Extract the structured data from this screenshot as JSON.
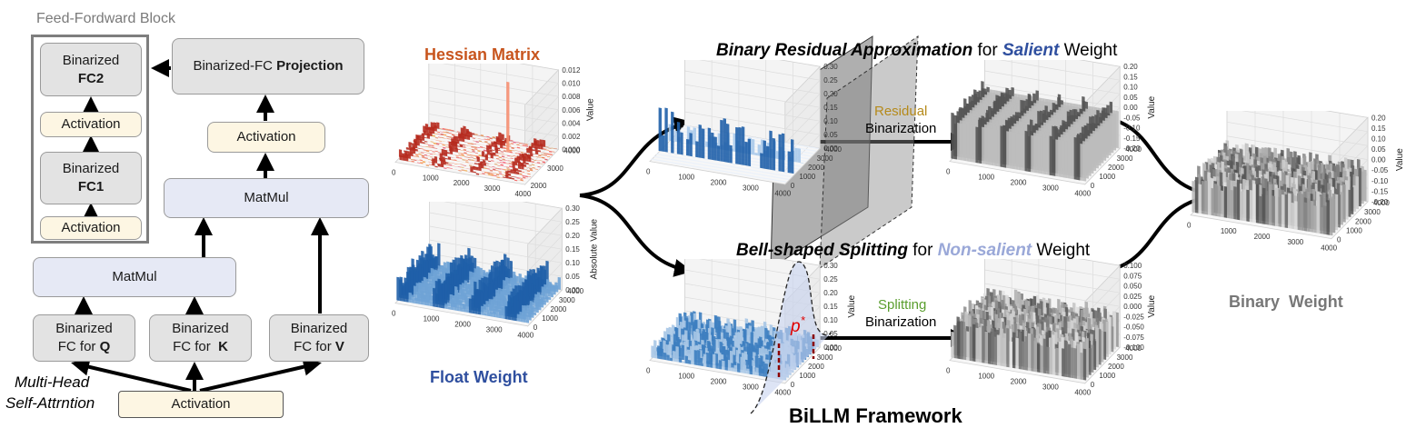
{
  "left": {
    "ffn_title": "Feed-Fordward Block",
    "fc2": [
      "Binarized",
      "FC2"
    ],
    "act_top": "Activation",
    "fc1": [
      "Binarized",
      "FC1"
    ],
    "act_bottom": "Activation",
    "projection": [
      "Binarized-FC ",
      "Projection"
    ],
    "act_mid": "Activation",
    "matmul_top": "MatMul",
    "matmul_bottom": "MatMul",
    "fc_q": [
      "Binarized",
      "FC for ",
      "Q"
    ],
    "fc_k": [
      "Binarized",
      "FC for  ",
      "K"
    ],
    "fc_v": [
      "Binarized",
      "FC for ",
      "V"
    ],
    "mha": [
      "Multi-Head",
      "Self-Attrntion"
    ],
    "act_input": "Activation"
  },
  "middle": {
    "hessian_title": "Hessian Matrix",
    "float_title": "Float Weight",
    "top_title": [
      "Binary Residual Approximation",
      " for ",
      "Salient",
      " Weight"
    ],
    "bottom_title": [
      "Bell-shaped Splitting",
      " for ",
      "Non-salient",
      " Weight"
    ],
    "residual": [
      "Residual",
      "Binarization"
    ],
    "splitting": [
      "Splitting",
      "Binarization"
    ],
    "p_star": "p*",
    "framework": "BiLLM Framework",
    "binary_title": "Binary  Weight"
  },
  "colors": {
    "orange": "#c8551e",
    "blue": "#2f4f9f",
    "lightblue": "#9aa8d8",
    "gold": "#b58a1b",
    "green": "#5a9e2e"
  },
  "plots": [
    {
      "id": "hessian",
      "zlabel": "Value",
      "zticks": [
        "0.012",
        "0.010",
        "0.008",
        "0.006",
        "0.004",
        "0.002",
        "0.000"
      ],
      "xticks": [
        "0",
        "1000",
        "2000",
        "3000",
        "4000"
      ],
      "yticks": [
        "4000",
        "3000",
        "2000"
      ]
    },
    {
      "id": "float",
      "zlabel": "Absolute Value",
      "zticks": [
        "0.30",
        "0.25",
        "0.20",
        "0.15",
        "0.10",
        "0.05",
        "0.00"
      ],
      "xticks": [
        "0",
        "1000",
        "2000",
        "3000",
        "4000"
      ],
      "yticks": [
        "4000",
        "3000",
        "2000",
        "1000",
        "0"
      ]
    },
    {
      "id": "salient",
      "zlabel": "",
      "zticks": [
        "0.30",
        "0.25",
        "0.20",
        "0.15",
        "0.10",
        "0.05",
        "0.00"
      ],
      "xticks": [
        "0",
        "1000",
        "2000",
        "3000",
        "4000"
      ],
      "yticks": [
        "4000",
        "3000",
        "2000",
        "1000",
        "0"
      ]
    },
    {
      "id": "salient_bin",
      "zlabel": "Value",
      "zticks": [
        "0.20",
        "0.15",
        "0.10",
        "0.05",
        "0.00",
        "-0.05",
        "-0.10",
        "-0.15",
        "-0.20"
      ],
      "xticks": [
        "0",
        "1000",
        "2000",
        "3000",
        "4000"
      ],
      "yticks": [
        "4000",
        "3000",
        "2000",
        "1000",
        "0"
      ]
    },
    {
      "id": "nonsalient",
      "zlabel": "Value",
      "zticks": [
        "0.30",
        "0.25",
        "0.20",
        "0.15",
        "0.10",
        "0.05",
        "0.00"
      ],
      "xticks": [
        "0",
        "1000",
        "2000",
        "3000",
        "4000"
      ],
      "yticks": [
        "4000",
        "3000",
        "2000",
        "1000",
        "0"
      ]
    },
    {
      "id": "nonsalient_bin",
      "zlabel": "Value",
      "zticks": [
        "0.100",
        "0.075",
        "0.050",
        "0.025",
        "0.000",
        "-0.025",
        "-0.050",
        "-0.075",
        "-0.100"
      ],
      "xticks": [
        "0",
        "1000",
        "2000",
        "3000",
        "4000"
      ],
      "yticks": [
        "4000",
        "3000",
        "2000",
        "1000",
        "0"
      ]
    },
    {
      "id": "binary",
      "zlabel": "Value",
      "zticks": [
        "0.20",
        "0.15",
        "0.10",
        "0.05",
        "0.00",
        "-0.05",
        "-0.10",
        "-0.15",
        "-0.20"
      ],
      "xticks": [
        "0",
        "1000",
        "2000",
        "3000",
        "4000"
      ],
      "yticks": [
        "4000",
        "3000",
        "2000",
        "1000",
        "0"
      ]
    }
  ]
}
